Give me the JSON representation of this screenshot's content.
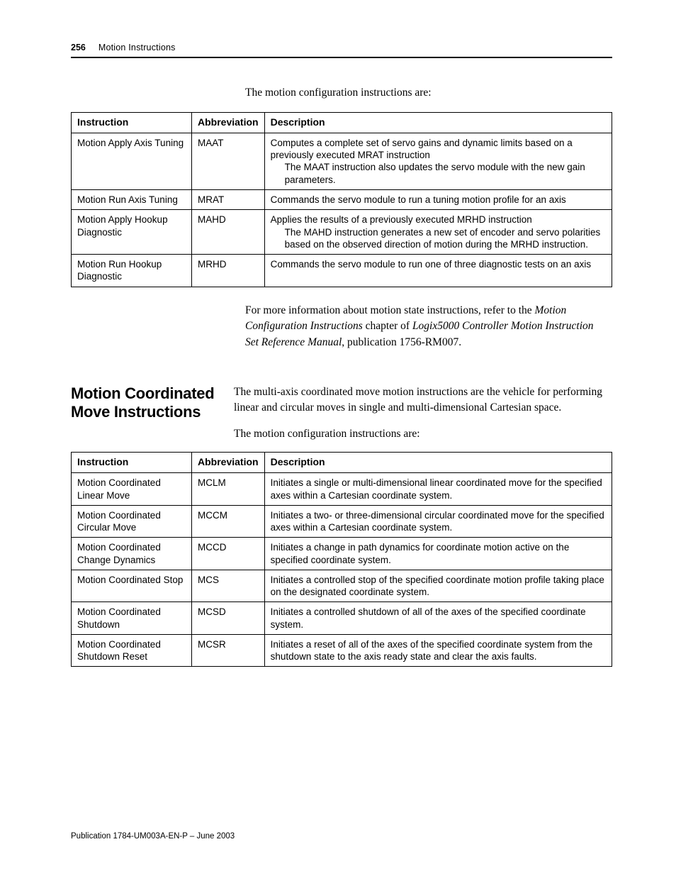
{
  "header": {
    "page_number": "256",
    "chapter_title": "Motion Instructions"
  },
  "intro_line_top": "The motion configuration instructions are:",
  "table1": {
    "headers": {
      "c1": "Instruction",
      "c2": "Abbreviation",
      "c3": "Description"
    },
    "rows": [
      {
        "instr": "Motion Apply Axis Tuning",
        "abbr": "MAAT",
        "desc_line1": "Computes a complete set of servo gains and dynamic limits based on a previously executed MRAT instruction",
        "desc_line2": "The MAAT instruction also updates the servo module with the new gain parameters."
      },
      {
        "instr": "Motion Run Axis Tuning",
        "abbr": "MRAT",
        "desc_line1": "Commands the servo module to run a tuning motion profile for an axis",
        "desc_line2": ""
      },
      {
        "instr": "Motion Apply Hookup Diagnostic",
        "abbr": "MAHD",
        "desc_line1": "Applies the results of a previously executed MRHD instruction",
        "desc_line2": "The MAHD instruction generates a new set of encoder and servo polarities based on the observed direction of motion during the MRHD instruction."
      },
      {
        "instr": "Motion Run Hookup Diagnostic",
        "abbr": "MRHD",
        "desc_line1": "Commands the servo module to run one of three diagnostic tests on an axis",
        "desc_line2": ""
      }
    ]
  },
  "info_para": {
    "lead": "For more information about motion state instructions, refer to the ",
    "ital1": "Motion Configuration Instructions",
    "mid1": " chapter of ",
    "ital2": "Logix5000 Controller Motion Instruction Set Reference Manual",
    "tail": ", publication 1756-RM007."
  },
  "section2": {
    "title": "Motion Coordinated Move Instructions",
    "para1": "The multi-axis coordinated move motion instructions are the vehicle for performing linear and circular moves in single and multi-dimensional Cartesian space.",
    "para2": "The motion configuration instructions are:"
  },
  "table2": {
    "headers": {
      "c1": "Instruction",
      "c2": "Abbreviation",
      "c3": "Description"
    },
    "rows": [
      {
        "instr": "Motion Coordinated Linear Move",
        "abbr": "MCLM",
        "desc": "Initiates a single or multi-dimensional linear coordinated move for the specified axes within a Cartesian coordinate system."
      },
      {
        "instr": "Motion Coordinated Circular Move",
        "abbr": "MCCM",
        "desc": "Initiates a two- or three-dimensional circular coordinated move for the specified axes within a Cartesian coordinate system."
      },
      {
        "instr": "Motion Coordinated Change Dynamics",
        "abbr": "MCCD",
        "desc": "Initiates a change in path dynamics for coordinate motion active on the specified coordinate system."
      },
      {
        "instr": "Motion Coordinated Stop",
        "abbr": "MCS",
        "desc": "Initiates a controlled stop of the specified coordinate motion profile taking place on the designated coordinate system."
      },
      {
        "instr": "Motion Coordinated Shutdown",
        "abbr": "MCSD",
        "desc": "Initiates a controlled shutdown of all of the axes of the specified coordinate system."
      },
      {
        "instr": "Motion Coordinated Shutdown Reset",
        "abbr": "MCSR",
        "desc": "Initiates a reset of all of the axes of the specified coordinate system from the shutdown state to the axis ready state and clear the axis faults."
      }
    ]
  },
  "footer": "Publication 1784-UM003A-EN-P – June 2003"
}
